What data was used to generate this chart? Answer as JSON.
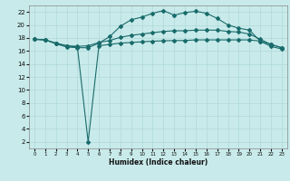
{
  "title": "",
  "xlabel": "Humidex (Indice chaleur)",
  "bg_color": "#c8eaea",
  "grid_color": "#b0d8d8",
  "line_color": "#1a6b6b",
  "xlim": [
    -0.5,
    23.5
  ],
  "ylim": [
    1,
    23
  ],
  "xticks": [
    0,
    1,
    2,
    3,
    4,
    5,
    6,
    7,
    8,
    9,
    10,
    11,
    12,
    13,
    14,
    15,
    16,
    17,
    18,
    19,
    20,
    21,
    22,
    23
  ],
  "yticks": [
    2,
    4,
    6,
    8,
    10,
    12,
    14,
    16,
    18,
    20,
    22
  ],
  "line1_x": [
    0,
    1,
    2,
    3,
    4,
    5,
    6,
    7,
    8,
    9,
    10,
    11,
    12,
    13,
    14,
    15,
    16,
    17,
    18,
    19,
    20,
    21,
    22,
    23
  ],
  "line1_y": [
    17.8,
    17.7,
    17.1,
    16.6,
    16.5,
    16.5,
    17.2,
    18.2,
    19.8,
    20.8,
    21.2,
    21.8,
    22.2,
    21.5,
    21.9,
    22.1,
    21.8,
    21.0,
    20.0,
    19.5,
    19.2,
    17.5,
    17.0,
    16.5
  ],
  "line2_x": [
    0,
    1,
    2,
    3,
    4,
    5,
    6,
    7,
    8,
    9,
    10,
    11,
    12,
    13,
    14,
    15,
    16,
    17,
    18,
    19,
    20,
    21,
    22,
    23
  ],
  "line2_y": [
    17.8,
    17.7,
    17.2,
    16.8,
    16.7,
    16.8,
    17.3,
    17.6,
    18.1,
    18.4,
    18.6,
    18.8,
    19.0,
    19.1,
    19.1,
    19.2,
    19.2,
    19.2,
    19.0,
    18.9,
    18.6,
    17.8,
    17.0,
    16.5
  ],
  "line3_x": [
    0,
    1,
    2,
    3,
    4,
    5,
    6,
    7,
    8,
    9,
    10,
    11,
    12,
    13,
    14,
    15,
    16,
    17,
    18,
    19,
    20,
    21,
    22,
    23
  ],
  "line3_y": [
    17.8,
    17.7,
    17.2,
    16.8,
    16.6,
    2.0,
    16.8,
    17.0,
    17.2,
    17.3,
    17.4,
    17.5,
    17.55,
    17.6,
    17.6,
    17.7,
    17.7,
    17.7,
    17.7,
    17.7,
    17.7,
    17.5,
    16.7,
    16.3
  ]
}
